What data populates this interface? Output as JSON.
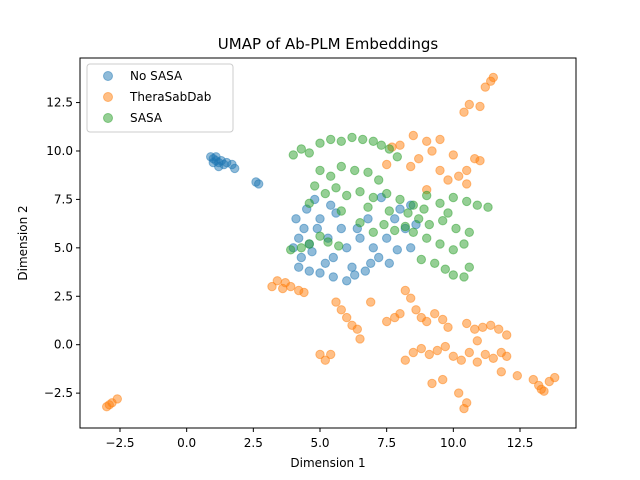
{
  "chart_data": {
    "type": "scatter",
    "title": "UMAP of Ab-PLM Embeddings",
    "xlabel": "Dimension 1",
    "ylabel": "Dimension 2",
    "xlim": [
      -4.0,
      14.6
    ],
    "ylim": [
      -4.3,
      14.8
    ],
    "xticks": [
      -2.5,
      0.0,
      2.5,
      5.0,
      7.5,
      10.0,
      12.5
    ],
    "xtick_labels": [
      "−2.5",
      "0.0",
      "2.5",
      "5.0",
      "7.5",
      "10.0",
      "12.5"
    ],
    "yticks": [
      -2.5,
      0.0,
      2.5,
      5.0,
      7.5,
      10.0,
      12.5
    ],
    "ytick_labels": [
      "−2.5",
      "0.0",
      "2.5",
      "5.0",
      "7.5",
      "10.0",
      "12.5"
    ],
    "grid": false,
    "legend_position": "upper-left",
    "series": [
      {
        "name": "No SASA",
        "color": "#1f77b4",
        "alpha": 0.5,
        "points": [
          [
            0.9,
            9.7
          ],
          [
            1.0,
            9.6
          ],
          [
            1.1,
            9.5
          ],
          [
            1.2,
            9.4
          ],
          [
            1.3,
            9.5
          ],
          [
            1.4,
            9.3
          ],
          [
            1.2,
            9.2
          ],
          [
            1.5,
            9.4
          ],
          [
            1.0,
            9.4
          ],
          [
            1.7,
            9.3
          ],
          [
            1.8,
            9.1
          ],
          [
            1.1,
            9.7
          ],
          [
            2.6,
            8.4
          ],
          [
            2.7,
            8.3
          ],
          [
            4.0,
            5.0
          ],
          [
            4.2,
            5.5
          ],
          [
            4.4,
            6.0
          ],
          [
            4.3,
            4.5
          ],
          [
            4.5,
            7.0
          ],
          [
            4.8,
            7.5
          ],
          [
            5.0,
            6.5
          ],
          [
            5.3,
            5.5
          ],
          [
            5.5,
            4.5
          ],
          [
            5.8,
            6.0
          ],
          [
            6.0,
            5.0
          ],
          [
            6.2,
            4.0
          ],
          [
            6.5,
            5.5
          ],
          [
            6.8,
            6.5
          ],
          [
            7.0,
            5.0
          ],
          [
            7.2,
            4.5
          ],
          [
            7.5,
            5.5
          ],
          [
            7.8,
            6.5
          ],
          [
            8.0,
            7.0
          ],
          [
            8.2,
            6.0
          ],
          [
            8.4,
            5.0
          ],
          [
            4.2,
            4.0
          ],
          [
            4.6,
            3.8
          ],
          [
            5.0,
            3.7
          ],
          [
            5.5,
            3.5
          ],
          [
            6.0,
            3.3
          ],
          [
            6.3,
            3.6
          ],
          [
            5.2,
            4.2
          ],
          [
            4.6,
            5.2
          ],
          [
            4.9,
            6.0
          ],
          [
            5.6,
            6.8
          ],
          [
            6.4,
            6.0
          ],
          [
            6.9,
            4.2
          ],
          [
            7.6,
            4.2
          ],
          [
            7.3,
            7.6
          ],
          [
            8.4,
            7.2
          ],
          [
            4.1,
            6.5
          ],
          [
            4.7,
            4.8
          ],
          [
            5.4,
            7.2
          ],
          [
            6.7,
            3.8
          ],
          [
            7.9,
            4.9
          ],
          [
            8.6,
            6.2
          ]
        ]
      },
      {
        "name": "TheraSabDab",
        "color": "#ff7f0e",
        "alpha": 0.5,
        "points": [
          [
            -3.0,
            -3.2
          ],
          [
            -2.8,
            -3.0
          ],
          [
            -2.6,
            -2.8
          ],
          [
            -2.9,
            -3.1
          ],
          [
            11.2,
            13.3
          ],
          [
            11.5,
            13.8
          ],
          [
            11.4,
            13.6
          ],
          [
            10.6,
            12.4
          ],
          [
            11.0,
            12.3
          ],
          [
            10.4,
            12.0
          ],
          [
            8.0,
            10.3
          ],
          [
            8.5,
            10.8
          ],
          [
            9.0,
            10.5
          ],
          [
            9.5,
            10.6
          ],
          [
            10.0,
            9.8
          ],
          [
            9.2,
            10.0
          ],
          [
            8.7,
            9.6
          ],
          [
            9.5,
            9.0
          ],
          [
            9.8,
            8.5
          ],
          [
            10.2,
            8.7
          ],
          [
            10.5,
            9.0
          ],
          [
            10.8,
            9.6
          ],
          [
            11.0,
            9.5
          ],
          [
            10.5,
            8.3
          ],
          [
            9.0,
            8.0
          ],
          [
            8.4,
            9.2
          ],
          [
            7.5,
            9.3
          ],
          [
            7.7,
            10.2
          ],
          [
            3.2,
            3.0
          ],
          [
            3.4,
            3.3
          ],
          [
            3.6,
            2.9
          ],
          [
            3.9,
            3.0
          ],
          [
            4.2,
            2.8
          ],
          [
            4.4,
            2.7
          ],
          [
            3.7,
            3.2
          ],
          [
            5.6,
            2.2
          ],
          [
            5.8,
            1.8
          ],
          [
            6.0,
            1.4
          ],
          [
            6.2,
            1.0
          ],
          [
            6.4,
            0.8
          ],
          [
            6.5,
            0.3
          ],
          [
            6.9,
            2.2
          ],
          [
            5.0,
            -0.5
          ],
          [
            5.2,
            -0.8
          ],
          [
            5.4,
            -0.5
          ],
          [
            7.5,
            1.2
          ],
          [
            7.8,
            1.4
          ],
          [
            8.0,
            1.6
          ],
          [
            8.2,
            2.8
          ],
          [
            8.4,
            2.4
          ],
          [
            8.6,
            1.8
          ],
          [
            8.8,
            1.4
          ],
          [
            9.0,
            1.2
          ],
          [
            9.3,
            1.6
          ],
          [
            9.6,
            1.3
          ],
          [
            9.8,
            0.9
          ],
          [
            10.5,
            1.1
          ],
          [
            10.8,
            0.8
          ],
          [
            11.1,
            0.9
          ],
          [
            11.4,
            1.0
          ],
          [
            11.7,
            0.8
          ],
          [
            12.0,
            0.5
          ],
          [
            10.9,
            0.2
          ],
          [
            8.2,
            -0.8
          ],
          [
            8.5,
            -0.4
          ],
          [
            8.8,
            -0.2
          ],
          [
            9.1,
            -0.5
          ],
          [
            9.4,
            -0.3
          ],
          [
            9.7,
            -0.1
          ],
          [
            10.0,
            -0.6
          ],
          [
            10.3,
            -0.8
          ],
          [
            10.6,
            -0.4
          ],
          [
            10.9,
            -0.9
          ],
          [
            11.2,
            -0.5
          ],
          [
            11.5,
            -0.7
          ],
          [
            11.8,
            -0.4
          ],
          [
            12.0,
            -0.6
          ],
          [
            9.2,
            -2.0
          ],
          [
            9.6,
            -1.8
          ],
          [
            10.2,
            -2.5
          ],
          [
            10.4,
            -3.3
          ],
          [
            10.5,
            -3.0
          ],
          [
            11.8,
            -1.4
          ],
          [
            12.4,
            -1.6
          ],
          [
            13.0,
            -1.8
          ],
          [
            13.2,
            -2.1
          ],
          [
            13.4,
            -2.4
          ],
          [
            13.6,
            -1.9
          ],
          [
            13.8,
            -1.7
          ],
          [
            13.3,
            -2.3
          ]
        ]
      },
      {
        "name": "SASA",
        "color": "#2ca02c",
        "alpha": 0.5,
        "points": [
          [
            3.9,
            4.9
          ],
          [
            4.3,
            5.0
          ],
          [
            4.6,
            5.2
          ],
          [
            5.0,
            5.6
          ],
          [
            5.3,
            5.3
          ],
          [
            5.7,
            5.1
          ],
          [
            4.0,
            9.8
          ],
          [
            4.3,
            10.1
          ],
          [
            4.6,
            9.9
          ],
          [
            5.0,
            10.4
          ],
          [
            5.4,
            10.6
          ],
          [
            5.8,
            10.5
          ],
          [
            6.2,
            10.7
          ],
          [
            6.6,
            10.6
          ],
          [
            7.0,
            10.5
          ],
          [
            7.3,
            10.3
          ],
          [
            7.6,
            10.1
          ],
          [
            7.9,
            9.7
          ],
          [
            5.0,
            9.0
          ],
          [
            5.4,
            8.7
          ],
          [
            5.8,
            9.2
          ],
          [
            6.3,
            9.0
          ],
          [
            6.8,
            8.9
          ],
          [
            7.2,
            8.5
          ],
          [
            4.8,
            8.2
          ],
          [
            5.2,
            7.8
          ],
          [
            5.6,
            8.1
          ],
          [
            6.0,
            7.7
          ],
          [
            6.5,
            7.9
          ],
          [
            7.0,
            7.6
          ],
          [
            7.5,
            7.8
          ],
          [
            8.0,
            7.5
          ],
          [
            8.5,
            7.2
          ],
          [
            9.0,
            7.7
          ],
          [
            9.5,
            7.3
          ],
          [
            10.0,
            7.6
          ],
          [
            10.5,
            7.4
          ],
          [
            10.9,
            7.2
          ],
          [
            11.3,
            7.1
          ],
          [
            8.3,
            6.8
          ],
          [
            8.7,
            6.5
          ],
          [
            9.1,
            6.2
          ],
          [
            9.6,
            6.4
          ],
          [
            10.1,
            6.0
          ],
          [
            10.6,
            5.8
          ],
          [
            8.5,
            5.8
          ],
          [
            9.0,
            5.5
          ],
          [
            9.5,
            5.2
          ],
          [
            10.0,
            4.9
          ],
          [
            10.4,
            5.2
          ],
          [
            8.8,
            4.4
          ],
          [
            9.3,
            4.2
          ],
          [
            9.7,
            3.9
          ],
          [
            10.0,
            3.6
          ],
          [
            10.4,
            3.5
          ],
          [
            10.6,
            4.0
          ],
          [
            6.5,
            6.3
          ],
          [
            7.0,
            5.8
          ],
          [
            7.4,
            6.2
          ],
          [
            7.8,
            5.9
          ],
          [
            8.2,
            6.1
          ],
          [
            6.8,
            7.1
          ],
          [
            7.6,
            6.9
          ],
          [
            8.9,
            7.0
          ],
          [
            9.8,
            6.8
          ],
          [
            4.6,
            7.3
          ],
          [
            5.8,
            6.9
          ]
        ]
      }
    ]
  }
}
